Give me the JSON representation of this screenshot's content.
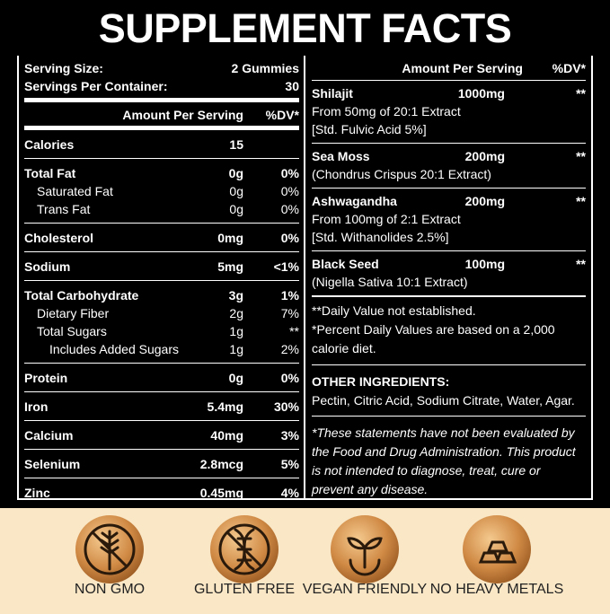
{
  "title": "SUPPLEMENT FACTS",
  "serving": {
    "size_label": "Serving Size:",
    "size": "2 Gummies",
    "containers_label": "Servings Per Container:",
    "containers": "30"
  },
  "left_header": {
    "amount": "Amount Per Serving",
    "dv": "%DV*"
  },
  "nutrients": [
    {
      "name": "Calories",
      "amount": "15",
      "dv": ""
    },
    {
      "name": "Total Fat",
      "amount": "0g",
      "dv": "0%",
      "sub": [
        {
          "name": "Saturated Fat",
          "amount": "0g",
          "dv": "0%"
        },
        {
          "name": "Trans Fat",
          "amount": "0g",
          "dv": "0%"
        }
      ]
    },
    {
      "name": "Cholesterol",
      "amount": "0mg",
      "dv": "0%"
    },
    {
      "name": "Sodium",
      "amount": "5mg",
      "dv": "<1%"
    },
    {
      "name": "Total Carbohydrate",
      "amount": "3g",
      "dv": "1%",
      "sub": [
        {
          "name": "Dietary Fiber",
          "amount": "2g",
          "dv": "7%"
        },
        {
          "name": "Total Sugars",
          "amount": "1g",
          "dv": "**",
          "sub": [
            {
              "name": "Includes Added Sugars",
              "amount": "1g",
              "dv": "2%"
            }
          ]
        }
      ]
    },
    {
      "name": "Protein",
      "amount": "0g",
      "dv": "0%"
    },
    {
      "name": "Iron",
      "amount": "5.4mg",
      "dv": "30%"
    },
    {
      "name": "Calcium",
      "amount": "40mg",
      "dv": "3%"
    },
    {
      "name": "Selenium",
      "amount": "2.8mcg",
      "dv": "5%"
    },
    {
      "name": "Zinc",
      "amount": "0.45mg",
      "dv": "4%"
    }
  ],
  "right_header": {
    "amount": "Amount Per Serving",
    "dv": "%DV*"
  },
  "ingredients": [
    {
      "name": "Shilajit",
      "amount": "1000mg",
      "dv": "**",
      "details": [
        "From 50mg of 20:1 Extract",
        "[Std. Fulvic Acid 5%]"
      ]
    },
    {
      "name": "Sea Moss",
      "amount": "200mg",
      "dv": "**",
      "details": [
        "(Chondrus Crispus 20:1 Extract)"
      ]
    },
    {
      "name": "Ashwagandha",
      "amount": "200mg",
      "dv": "**",
      "details": [
        "From 100mg of 2:1 Extract",
        "[Std. Withanolides 2.5%]"
      ]
    },
    {
      "name": "Black Seed",
      "amount": "100mg",
      "dv": "**",
      "details": [
        "(Nigella Sativa 10:1 Extract)"
      ]
    }
  ],
  "notes": [
    "**Daily Value not established.",
    "*Percent Daily Values are based on a 2,000 calorie diet."
  ],
  "other_ingredients": {
    "heading": "OTHER INGREDIENTS:",
    "text": "Pectin, Citric Acid, Sodium Citrate, Water, Agar."
  },
  "disclaimer": "*These statements have not been evaluated by the Food and Drug Administration. This product is not intended to diagnose, treat, cure or prevent any disease.",
  "badges": [
    "NON GMO",
    "GLUTEN FREE",
    "VEGAN FRIENDLY",
    "NO HEAVY METALS"
  ]
}
